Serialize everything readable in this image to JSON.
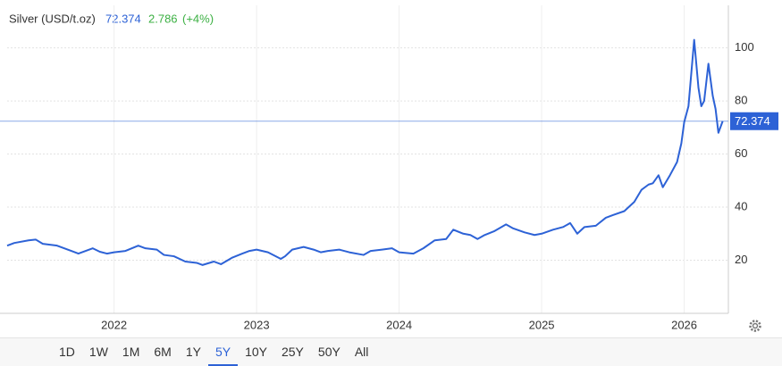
{
  "chart_data": {
    "type": "line",
    "title": "Silver (USD/t.oz)",
    "last_value": 72.374,
    "change": 2.786,
    "change_pct_label": "(+4%)",
    "x": [
      2021.25,
      2021.3,
      2021.4,
      2021.45,
      2021.5,
      2021.6,
      2021.7,
      2021.75,
      2021.85,
      2021.9,
      2021.95,
      2022.0,
      2022.08,
      2022.17,
      2022.22,
      2022.3,
      2022.35,
      2022.42,
      2022.5,
      2022.58,
      2022.62,
      2022.7,
      2022.75,
      2022.83,
      2022.9,
      2022.95,
      2023.0,
      2023.08,
      2023.17,
      2023.2,
      2023.25,
      2023.33,
      2023.4,
      2023.45,
      2023.5,
      2023.58,
      2023.65,
      2023.75,
      2023.8,
      2023.88,
      2023.95,
      2024.0,
      2024.1,
      2024.17,
      2024.25,
      2024.33,
      2024.38,
      2024.45,
      2024.5,
      2024.55,
      2024.6,
      2024.67,
      2024.75,
      2024.8,
      2024.88,
      2024.95,
      2025.0,
      2025.08,
      2025.15,
      2025.2,
      2025.25,
      2025.3,
      2025.38,
      2025.45,
      2025.5,
      2025.58,
      2025.65,
      2025.7,
      2025.75,
      2025.78,
      2025.82,
      2025.85,
      2025.9,
      2025.95,
      2025.98,
      2026.0,
      2026.03,
      2026.07,
      2026.1,
      2026.12,
      2026.14,
      2026.17,
      2026.2,
      2026.22,
      2026.24,
      2026.27
    ],
    "series": [
      {
        "name": "Silver",
        "color": "#2d62d6",
        "values": [
          25.5,
          26.5,
          27.5,
          27.8,
          26.2,
          25.5,
          23.5,
          22.5,
          24.5,
          23.2,
          22.5,
          23.0,
          23.5,
          25.5,
          24.5,
          24.0,
          22.0,
          21.5,
          19.5,
          19.0,
          18.2,
          19.5,
          18.5,
          21.0,
          22.5,
          23.5,
          24.0,
          23.0,
          20.5,
          21.5,
          24.0,
          25.0,
          24.0,
          23.0,
          23.5,
          24.0,
          23.0,
          22.0,
          23.5,
          24.0,
          24.5,
          23.0,
          22.5,
          24.5,
          27.5,
          28.0,
          31.5,
          30.0,
          29.5,
          28.0,
          29.5,
          31.0,
          33.5,
          32.0,
          30.5,
          29.5,
          30.0,
          31.5,
          32.5,
          34.0,
          30.0,
          32.5,
          33.0,
          36.0,
          37.0,
          38.5,
          42.0,
          46.5,
          48.5,
          49.0,
          52.0,
          47.5,
          52.0,
          57.0,
          64.0,
          72.0,
          78.0,
          103.0,
          85.0,
          78.0,
          80.0,
          94.0,
          82.0,
          77.0,
          68.0,
          72.374
        ]
      }
    ],
    "xlim": [
      2021.25,
      2026.31
    ],
    "xticks": [
      2022,
      2023,
      2024,
      2025,
      2026
    ],
    "ylim": [
      0,
      116
    ],
    "yticks": [
      20,
      40,
      60,
      80,
      100
    ],
    "grid": true
  },
  "range_buttons": [
    "1D",
    "1W",
    "1M",
    "6M",
    "1Y",
    "5Y",
    "10Y",
    "25Y",
    "50Y",
    "All"
  ],
  "selected_range": "5Y"
}
